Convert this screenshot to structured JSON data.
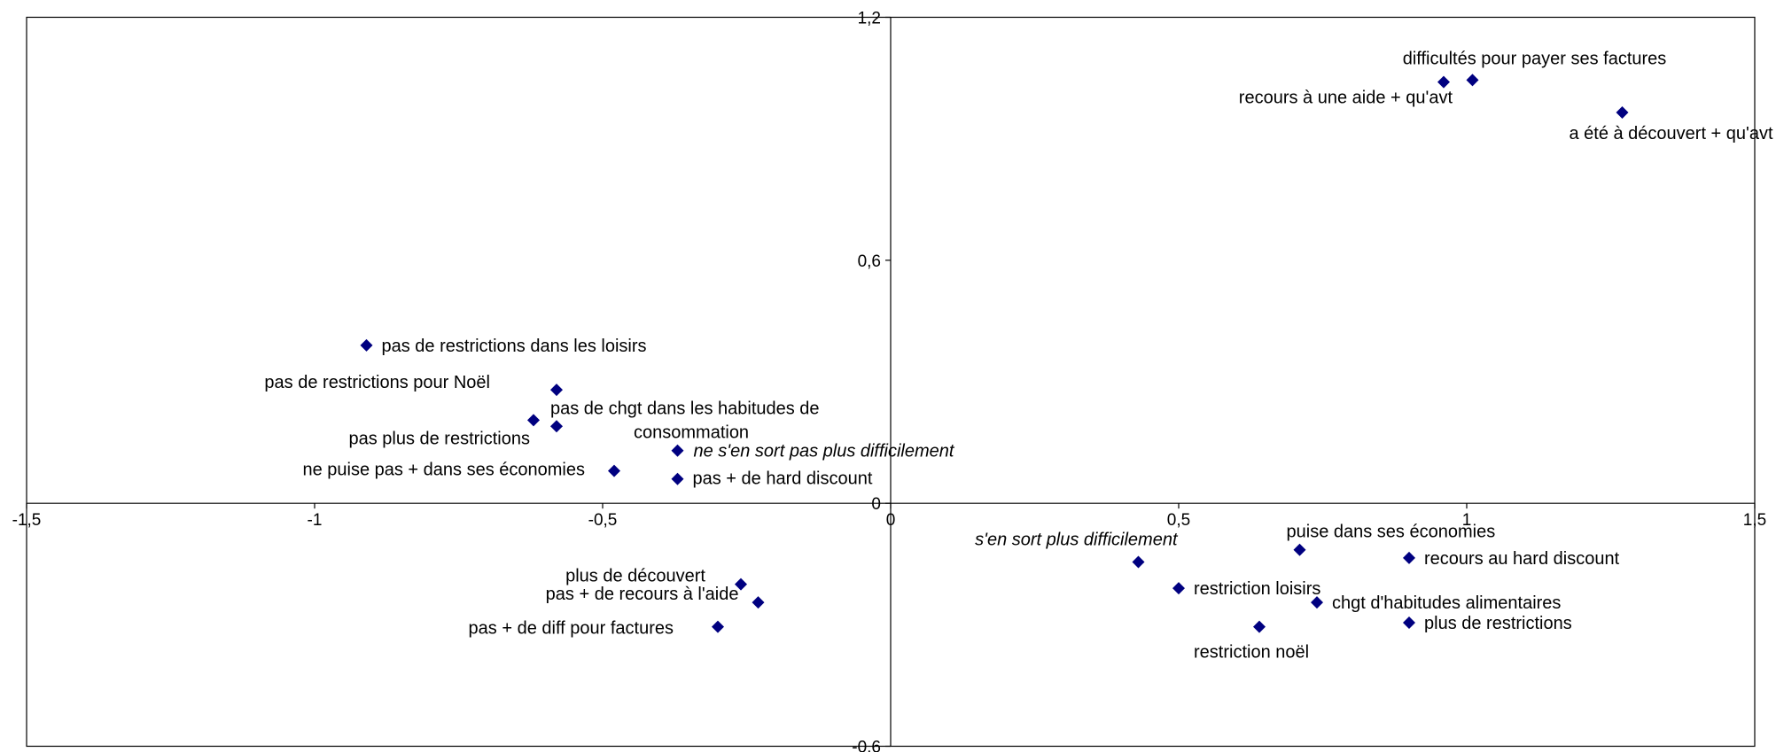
{
  "chart_data": {
    "type": "scatter",
    "title": "",
    "xlabel": "",
    "ylabel": "",
    "xlim": [
      -1.5,
      1.5
    ],
    "ylim": [
      -0.6,
      1.2
    ],
    "x_ticks": [
      -1.5,
      -1,
      -0.5,
      0,
      0.5,
      1,
      1.5
    ],
    "x_tick_labels": [
      "-1,5",
      "-1",
      "-0,5",
      "0",
      "0,5",
      "1",
      "1,5"
    ],
    "y_ticks": [
      1.2,
      0.6,
      0,
      -0.6
    ],
    "y_tick_labels": [
      "1,2",
      "0,6",
      "0",
      "-0,6"
    ],
    "grid": false,
    "marker": "diamond",
    "marker_color": "#000080",
    "points": [
      {
        "x": -0.91,
        "y": 0.39,
        "label": "pas de restrictions dans les loisirs",
        "italic": false
      },
      {
        "x": -0.58,
        "y": 0.28,
        "label": "pas de restrictions pour Noël",
        "italic": false
      },
      {
        "x": -0.58,
        "y": 0.19,
        "label": "pas de chgt dans les habitudes de consommation",
        "italic": false
      },
      {
        "x": -0.62,
        "y": 0.205,
        "label": "pas plus de restrictions",
        "italic": false
      },
      {
        "x": -0.48,
        "y": 0.08,
        "label": "ne puise pas + dans ses économies",
        "italic": false
      },
      {
        "x": -0.37,
        "y": 0.13,
        "label": "ne s'en sort pas plus difficilement",
        "italic": true
      },
      {
        "x": -0.37,
        "y": 0.06,
        "label": "pas + de hard discount",
        "italic": false
      },
      {
        "x": -0.26,
        "y": -0.2,
        "label": "plus de découvert",
        "italic": false
      },
      {
        "x": -0.23,
        "y": -0.245,
        "label": "pas + de recours à l'aide",
        "italic": false
      },
      {
        "x": -0.3,
        "y": -0.305,
        "label": "pas + de diff pour factures",
        "italic": false
      },
      {
        "x": 0.96,
        "y": 1.04,
        "label": "recours à une aide + qu'avt",
        "italic": false
      },
      {
        "x": 1.01,
        "y": 1.045,
        "label": "difficultés pour payer ses factures",
        "italic": false
      },
      {
        "x": 1.27,
        "y": 0.965,
        "label": "a été à découvert + qu'avt",
        "italic": false
      },
      {
        "x": 0.43,
        "y": -0.145,
        "label": "s'en sort plus difficilement",
        "italic": true
      },
      {
        "x": 0.71,
        "y": -0.115,
        "label": "puise dans ses économies",
        "italic": false
      },
      {
        "x": 0.9,
        "y": -0.135,
        "label": "recours au hard discount",
        "italic": false
      },
      {
        "x": 0.5,
        "y": -0.21,
        "label": "restriction loisirs",
        "italic": false
      },
      {
        "x": 0.74,
        "y": -0.245,
        "label": "chgt d'habitudes alimentaires",
        "italic": false
      },
      {
        "x": 0.9,
        "y": -0.295,
        "label": "plus de restrictions",
        "italic": false
      },
      {
        "x": 0.64,
        "y": -0.305,
        "label": "restriction noël",
        "italic": false
      }
    ]
  }
}
